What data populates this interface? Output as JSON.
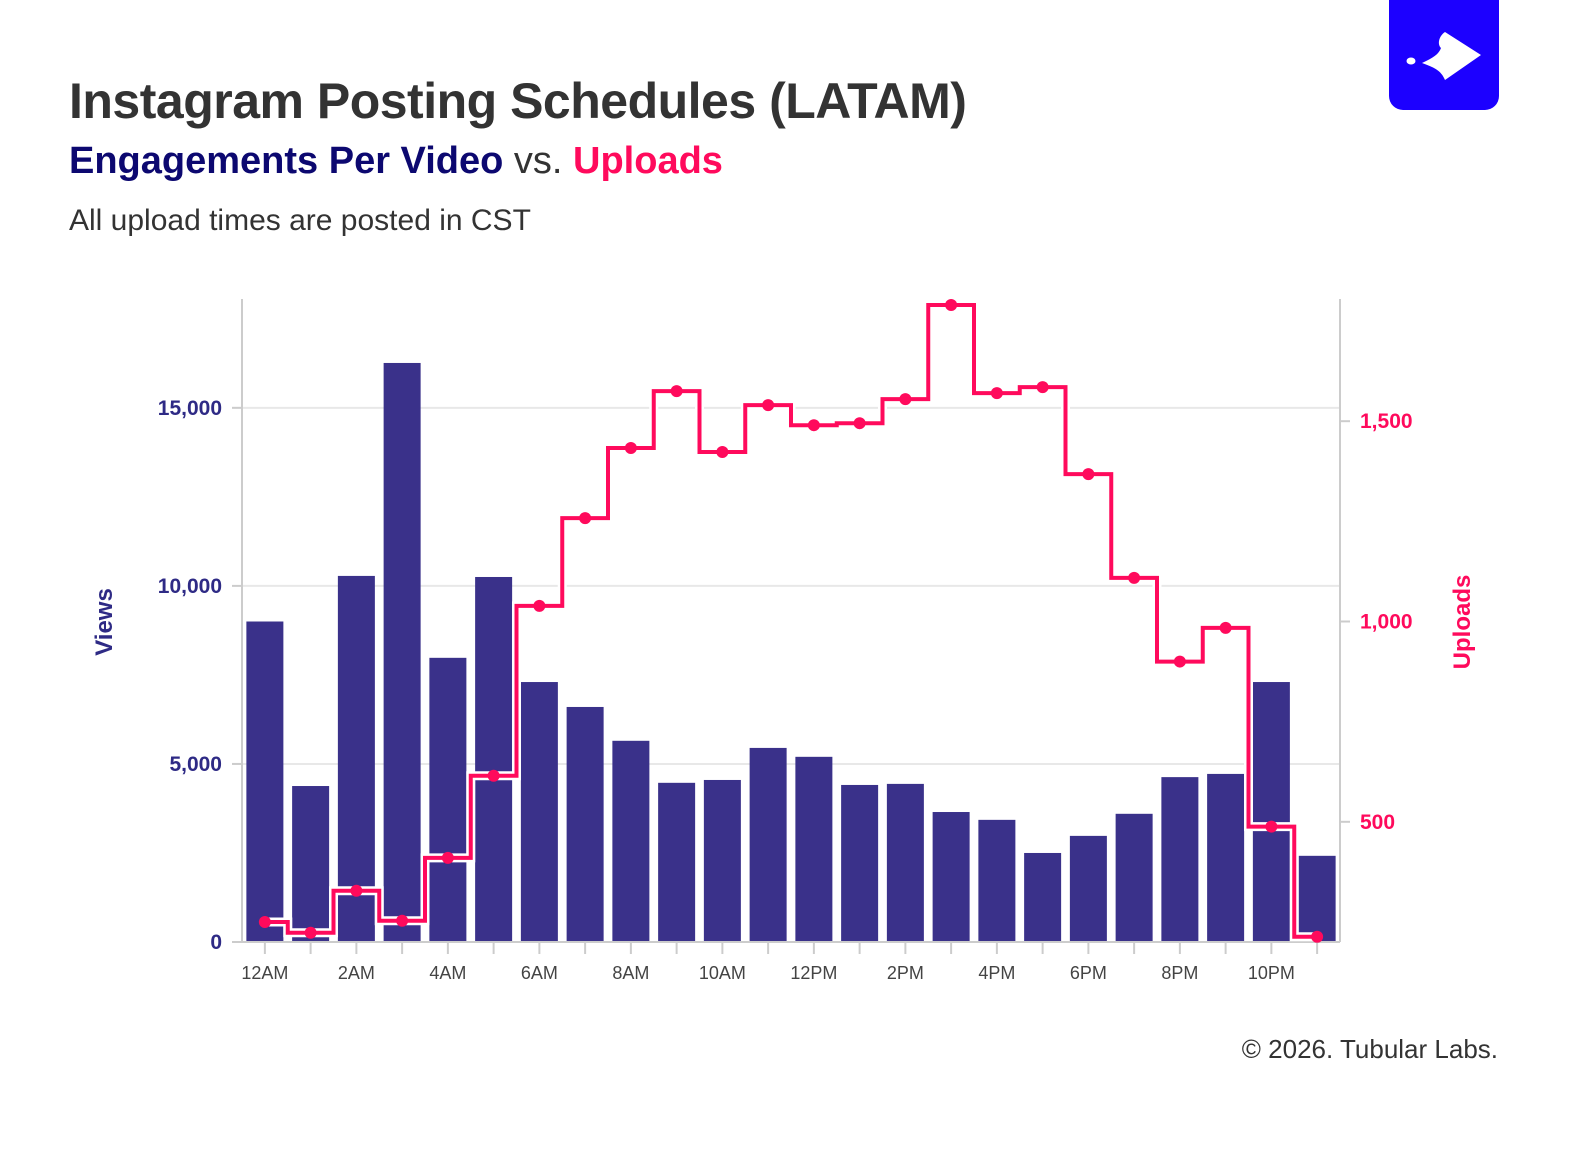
{
  "header": {
    "title": "Instagram Posting Schedules (LATAM)",
    "subtitle_part1": "Engagements Per Video",
    "subtitle_sep": " vs. ",
    "subtitle_part2": "Uploads",
    "note": "All upload times are posted in CST"
  },
  "footer": {
    "copyright": "© 2026. Tubular Labs."
  },
  "logo": {
    "name": "tubular-labs-logo",
    "color": "#1c00ff"
  },
  "chart_data": {
    "type": "bar+line",
    "categories": [
      "12AM",
      "1AM",
      "2AM",
      "3AM",
      "4AM",
      "5AM",
      "6AM",
      "7AM",
      "8AM",
      "9AM",
      "10AM",
      "11AM",
      "12PM",
      "1PM",
      "2PM",
      "3PM",
      "4PM",
      "5PM",
      "6PM",
      "7PM",
      "8PM",
      "9PM",
      "10PM",
      "11PM"
    ],
    "x_tick_labels": [
      "12AM",
      "2AM",
      "4AM",
      "6AM",
      "8AM",
      "10AM",
      "12PM",
      "2PM",
      "4PM",
      "6PM",
      "8PM",
      "10PM"
    ],
    "series": [
      {
        "name": "Views",
        "type": "bar",
        "axis": "left",
        "color": "#3a318a",
        "values": [
          9000,
          4380,
          10280,
          16260,
          7980,
          10250,
          7300,
          6600,
          5650,
          4470,
          4550,
          5450,
          5200,
          4410,
          4440,
          3650,
          3430,
          2500,
          2980,
          3600,
          4630,
          4720,
          7300,
          2420
        ]
      },
      {
        "name": "Uploads",
        "type": "step-line",
        "axis": "right",
        "color": "#ff0a5c",
        "values": [
          250,
          223,
          328,
          253,
          410,
          615,
          1039,
          1258,
          1433,
          1575,
          1423,
          1540,
          1490,
          1495,
          1555,
          1790,
          1570,
          1585,
          1368,
          1109,
          900,
          984,
          488,
          213
        ]
      }
    ],
    "left_axis": {
      "label": "Views",
      "range": [
        0,
        18000
      ],
      "ticks": [
        0,
        5000,
        10000,
        15000
      ],
      "tick_labels": [
        "0",
        "5,000",
        "10,000",
        "15,000"
      ]
    },
    "right_axis": {
      "label": "Uploads",
      "range": [
        200,
        1800
      ],
      "ticks": [
        500,
        1000,
        1500
      ],
      "tick_labels": [
        "500",
        "1,000",
        "1,500"
      ]
    },
    "grid": true,
    "legend": "none"
  }
}
